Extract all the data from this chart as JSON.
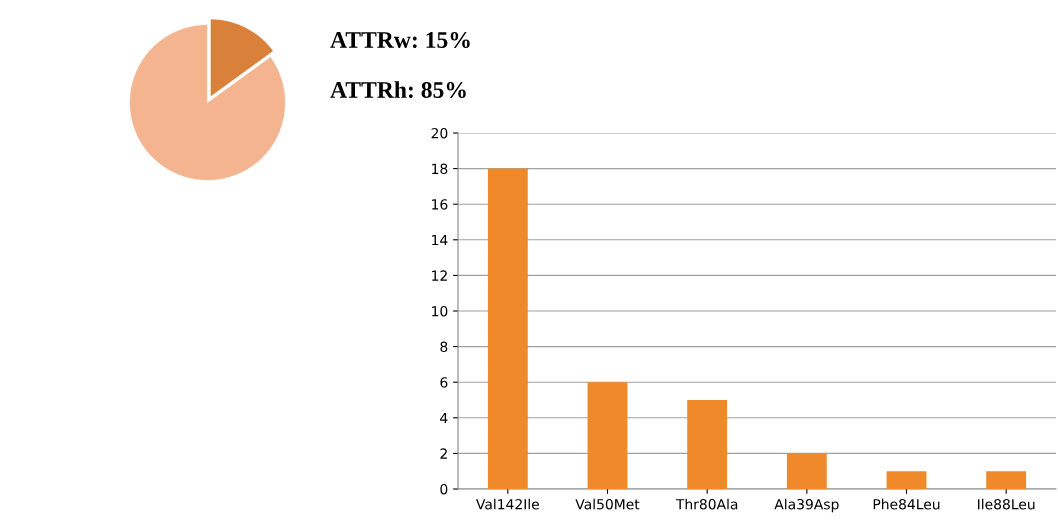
{
  "chart_data": [
    {
      "type": "pie",
      "categories": [
        "ATTRw",
        "ATTRh"
      ],
      "values": [
        15,
        85
      ],
      "colors": [
        "#d9803a",
        "#f4b48f"
      ],
      "value_labels": [
        "15%",
        "85%"
      ],
      "legend": false
    },
    {
      "type": "bar",
      "categories": [
        "Val142Ile",
        "Val50Met",
        "Thr80Ala",
        "Ala39Asp",
        "Phe84Leu",
        "Ile88Leu"
      ],
      "values": [
        18,
        6,
        5,
        2,
        1,
        1
      ],
      "color": "#f0892a",
      "ylim": [
        0,
        20
      ],
      "yticks": [
        0,
        2,
        4,
        6,
        8,
        10,
        12,
        14,
        16,
        18,
        20
      ],
      "grid": "y",
      "legend": false
    }
  ]
}
